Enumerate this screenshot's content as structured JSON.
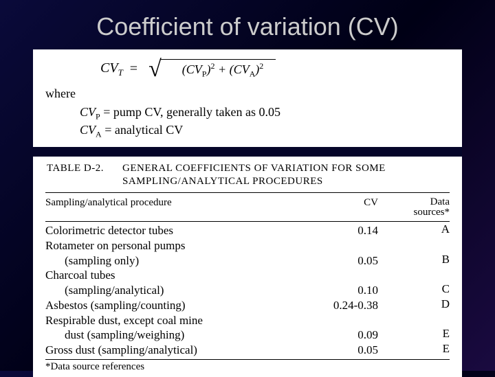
{
  "title": "Coefficient of variation (CV)",
  "formula": {
    "lhs_base": "CV",
    "lhs_sub": "T",
    "term1_base": "CV",
    "term1_sub": "P",
    "term2_base": "CV",
    "term2_sub": "A",
    "exponent": "2"
  },
  "where_label": "where",
  "def1": {
    "var_base": "CV",
    "var_sub": "P",
    "text": " = pump CV, generally taken as 0.05"
  },
  "def2": {
    "var_base": "CV",
    "var_sub": "A",
    "text": " = analytical CV"
  },
  "table": {
    "label": "TABLE  D-2.",
    "heading": "GENERAL COEFFICIENTS OF VARIATION FOR SOME SAMPLING/ANALYTICAL PROCEDURES",
    "col_proc": "Sampling/analytical procedure",
    "col_cv": "CV",
    "col_src_line1": "Data",
    "col_src_line2": "sources*",
    "rows": [
      {
        "proc": "Colorimetric detector tubes",
        "cv": "0.14",
        "src": "A",
        "indent": false
      },
      {
        "proc": "Rotameter on personal pumps",
        "cv": "",
        "src": "",
        "indent": false
      },
      {
        "proc": "(sampling only)",
        "cv": "0.05",
        "src": "B",
        "indent": true
      },
      {
        "proc": "Charcoal tubes",
        "cv": "",
        "src": "",
        "indent": false
      },
      {
        "proc": "(sampling/analytical)",
        "cv": "0.10",
        "src": "C",
        "indent": true
      },
      {
        "proc": "Asbestos (sampling/counting)",
        "cv": "0.24-0.38",
        "src": "D",
        "indent": false
      },
      {
        "proc": "Respirable dust, except coal mine",
        "cv": "",
        "src": "",
        "indent": false
      },
      {
        "proc": "dust (sampling/weighing)",
        "cv": "0.09",
        "src": "E",
        "indent": true
      },
      {
        "proc": "Gross dust (sampling/analytical)",
        "cv": "0.05",
        "src": "E",
        "indent": false
      }
    ],
    "footnote": "*Data source references"
  }
}
